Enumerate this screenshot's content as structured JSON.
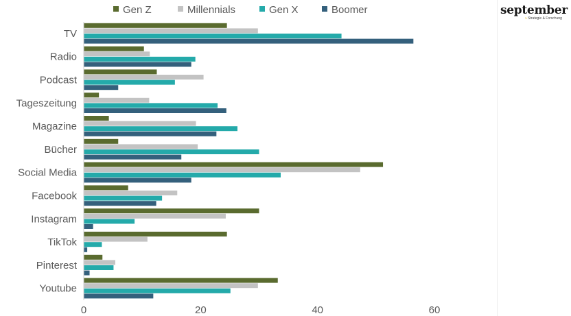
{
  "brand": {
    "name": "september",
    "tagline": "Strategie & Forschung"
  },
  "chart_data": {
    "type": "bar",
    "orientation": "horizontal",
    "title": "",
    "xlabel": "",
    "ylabel": "",
    "categories": [
      "TV",
      "Radio",
      "Podcast",
      "Tageszeitung",
      "Magazine",
      "Bücher",
      "Social Media",
      "Facebook",
      "Instagram",
      "TikTok",
      "Pinterest",
      "Youtube"
    ],
    "series": [
      {
        "name": "Gen Z",
        "color": "#5a6b2f",
        "values": [
          24.5,
          10.3,
          12.5,
          2.6,
          4.3,
          5.9,
          51.2,
          7.6,
          30,
          24.5,
          3.2,
          33.2
        ]
      },
      {
        "name": "Millennials",
        "color": "#c3c3c3",
        "values": [
          29.8,
          11.3,
          20.5,
          11.2,
          19.2,
          19.5,
          47.3,
          16.0,
          24.3,
          10.9,
          5.4,
          29.8
        ]
      },
      {
        "name": "Gen X",
        "color": "#24aaaa",
        "values": [
          44.1,
          19.1,
          15.6,
          22.9,
          26.3,
          30,
          33.7,
          13.4,
          8.7,
          3.1,
          5.1,
          25.1
        ]
      },
      {
        "name": "Boomer",
        "color": "#34607c",
        "values": [
          56.4,
          18.4,
          5.9,
          24.4,
          22.7,
          16.7,
          18.4,
          12.4,
          1.6,
          0.6,
          1.0,
          11.9
        ]
      }
    ],
    "xlim": [
      0,
      60
    ],
    "xticks": [
      0,
      20,
      40,
      60
    ],
    "grid": false,
    "legend_position": "top"
  }
}
